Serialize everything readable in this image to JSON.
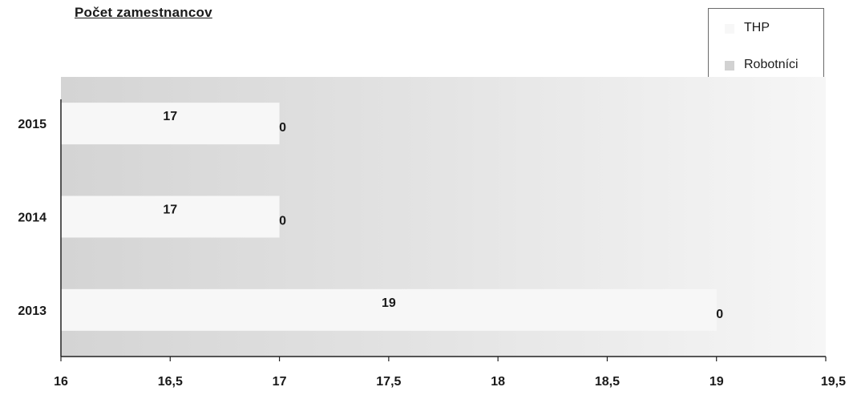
{
  "chart_data": {
    "type": "bar",
    "orientation": "horizontal",
    "title": "Počet zamestnancov",
    "categories": [
      "2015",
      "2014",
      "2013"
    ],
    "series": [
      {
        "name": "THP",
        "values": [
          17,
          17,
          19
        ],
        "color": "#f7f7f7",
        "labels": [
          "17",
          "17",
          "19"
        ]
      },
      {
        "name": "Robotníci",
        "values": [
          0,
          0,
          0
        ],
        "color": "#d2d2d2",
        "labels": [
          "0",
          "0",
          "0"
        ]
      }
    ],
    "xlim": [
      16,
      19.5
    ],
    "x_ticks": [
      "16",
      "16,5",
      "17",
      "17,5",
      "18",
      "18,5",
      "19",
      "19,5"
    ],
    "plot_area_color": "#dcdcdc",
    "legend_position": "top-right",
    "grid": false
  }
}
